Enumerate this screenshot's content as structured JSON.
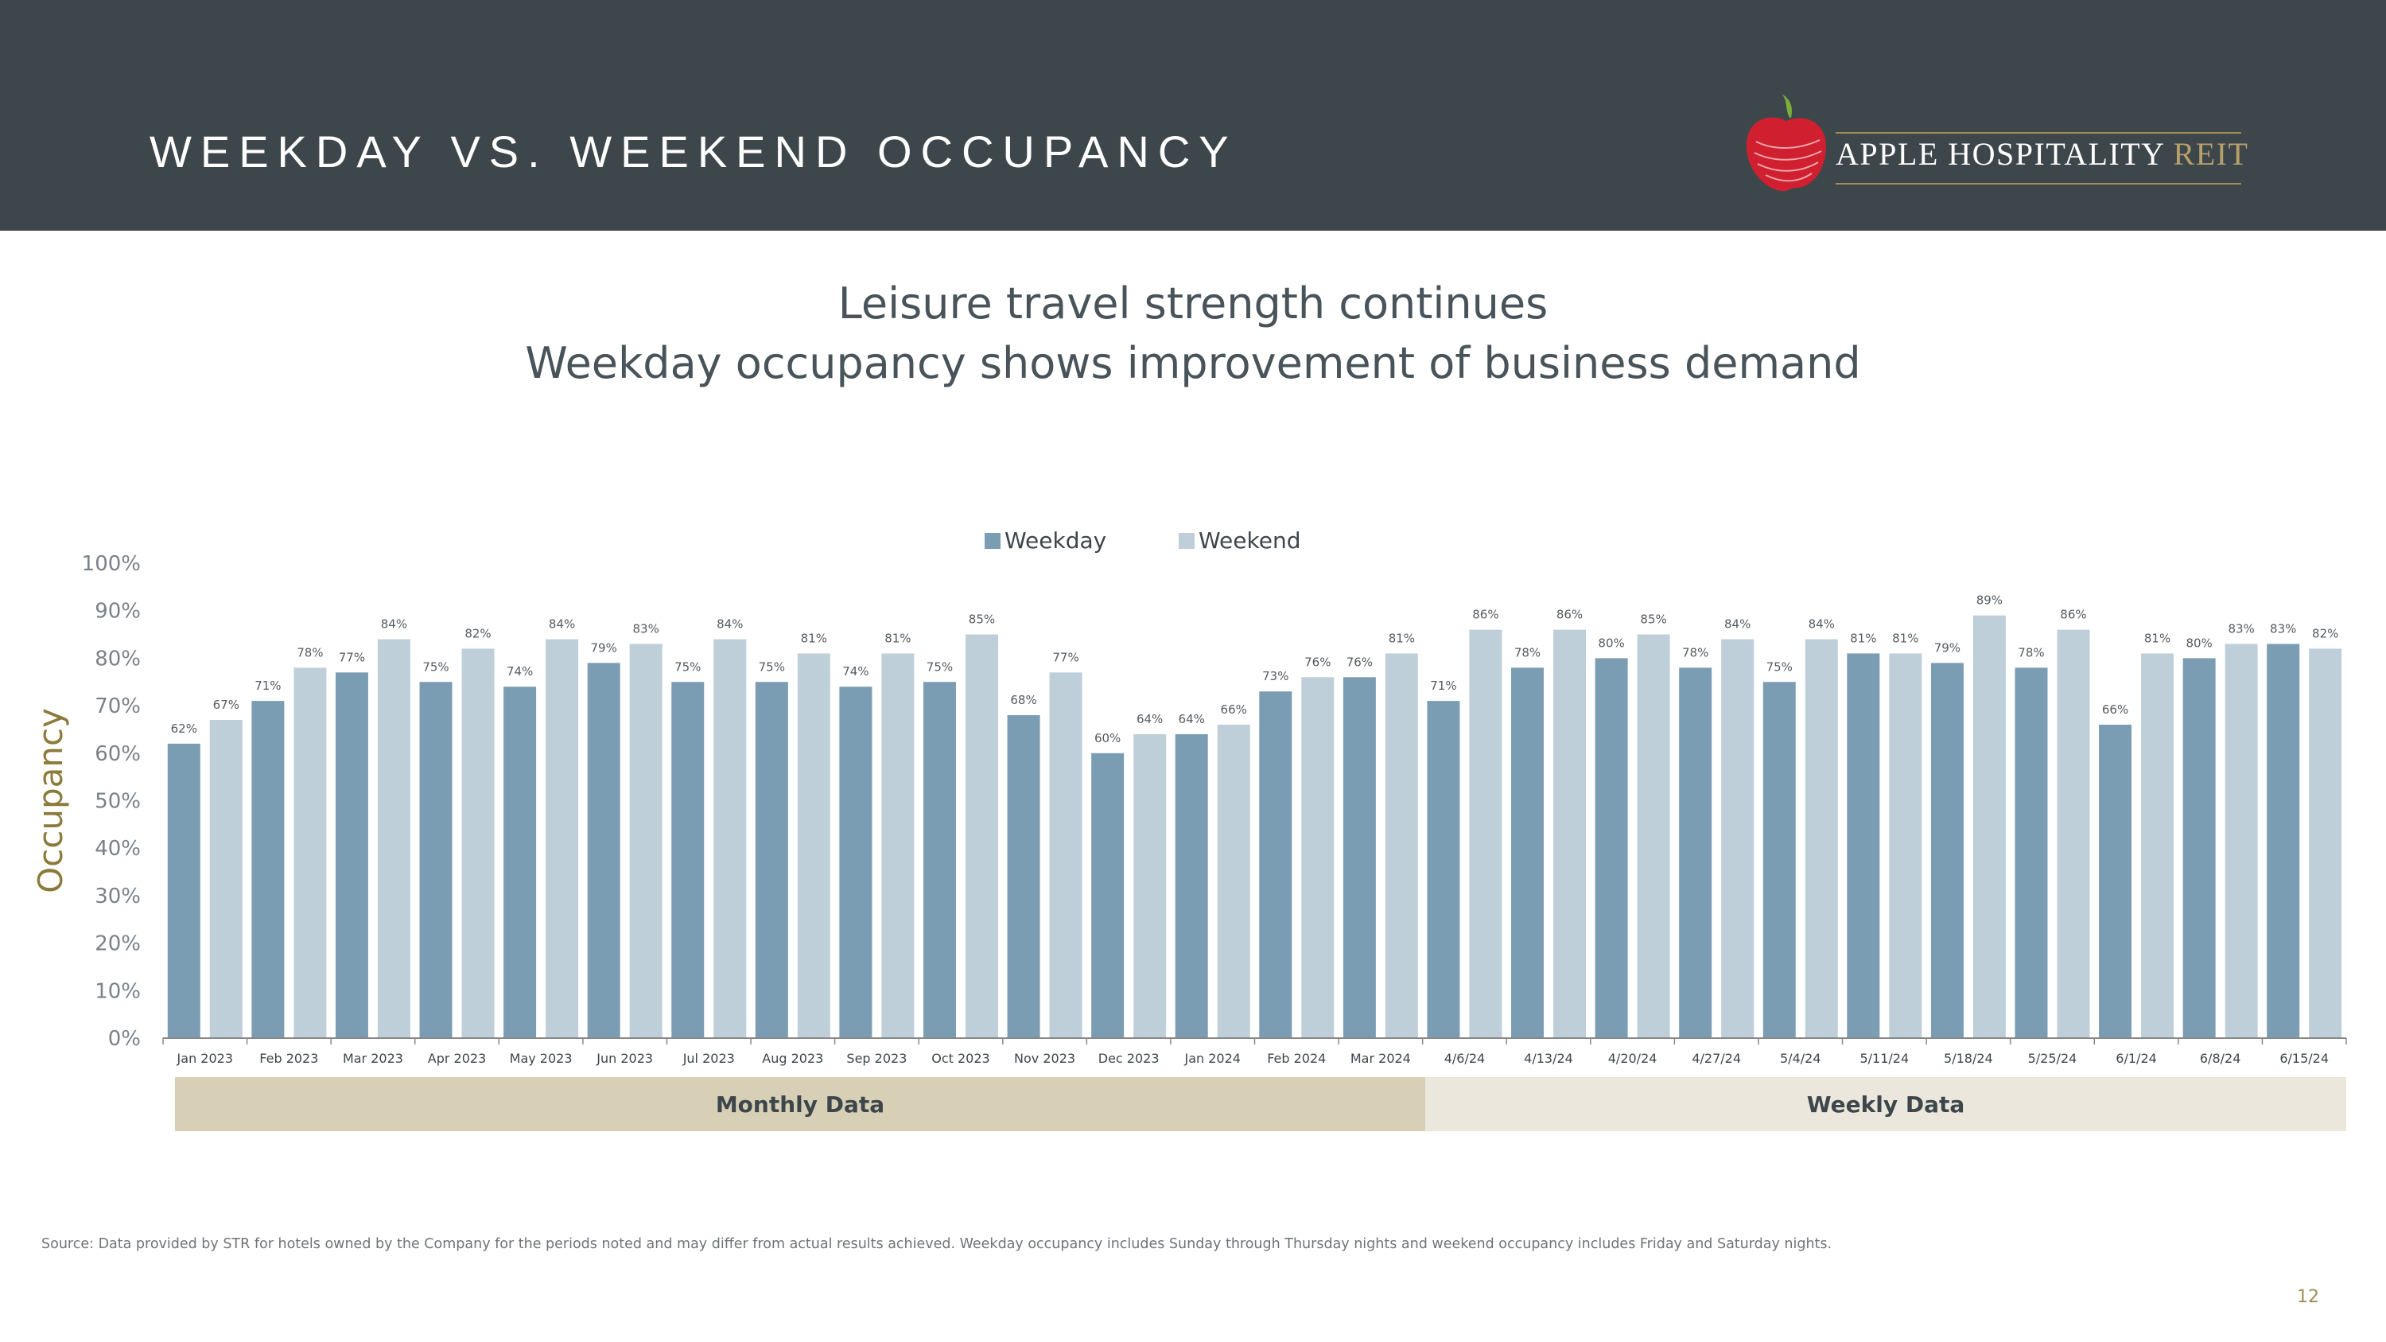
{
  "header": {
    "title": "WEEKDAY VS. WEEKEND OCCUPANCY",
    "logo_main": "APPLE HOSPITALITY",
    "logo_accent": "REIT"
  },
  "subtitle": {
    "line1": "Leisure travel strength continues",
    "line2": "Weekday occupancy shows improvement of business demand"
  },
  "bands": {
    "monthly": "Monthly Data",
    "weekly": "Weekly Data"
  },
  "footer": {
    "source": "Source:  Data provided by STR for hotels owned by the Company for the periods noted and may differ from actual results achieved. Weekday occupancy includes Sunday through Thursday nights and weekend occupancy includes Friday and Saturday nights.",
    "page_number": "12"
  },
  "colors": {
    "header_bg": "#3d474b",
    "weekday": "#7b9db4",
    "weekend": "#bfcfda",
    "ylabel": "#8c7a3b",
    "logo_red": "#d0202f",
    "logo_green": "#7cae3a"
  },
  "chart_data": {
    "type": "bar",
    "ylabel": "Occupancy",
    "ylim": [
      0,
      100
    ],
    "yticks": [
      0,
      10,
      20,
      30,
      40,
      50,
      60,
      70,
      80,
      90,
      100
    ],
    "ytick_labels": [
      "0%",
      "10%",
      "20%",
      "30%",
      "40%",
      "50%",
      "60%",
      "70%",
      "80%",
      "90%",
      "100%"
    ],
    "legend_position": "top-center",
    "categories": [
      "Jan 2023",
      "Feb 2023",
      "Mar 2023",
      "Apr 2023",
      "May 2023",
      "Jun 2023",
      "Jul 2023",
      "Aug 2023",
      "Sep 2023",
      "Oct 2023",
      "Nov 2023",
      "Dec 2023",
      "Jan 2024",
      "Feb 2024",
      "Mar 2024",
      "4/6/24",
      "4/13/24",
      "4/20/24",
      "4/27/24",
      "5/4/24",
      "5/11/24",
      "5/18/24",
      "5/25/24",
      "6/1/24",
      "6/8/24",
      "6/15/24"
    ],
    "series": [
      {
        "name": "Weekday",
        "values": [
          62,
          71,
          77,
          75,
          74,
          79,
          75,
          75,
          74,
          75,
          68,
          60,
          64,
          73,
          76,
          71,
          78,
          80,
          78,
          75,
          81,
          79,
          78,
          66,
          80,
          83
        ]
      },
      {
        "name": "Weekend",
        "values": [
          67,
          78,
          84,
          82,
          84,
          83,
          84,
          81,
          81,
          85,
          77,
          64,
          66,
          76,
          81,
          86,
          86,
          85,
          84,
          84,
          81,
          89,
          86,
          81,
          83,
          82
        ]
      }
    ]
  }
}
